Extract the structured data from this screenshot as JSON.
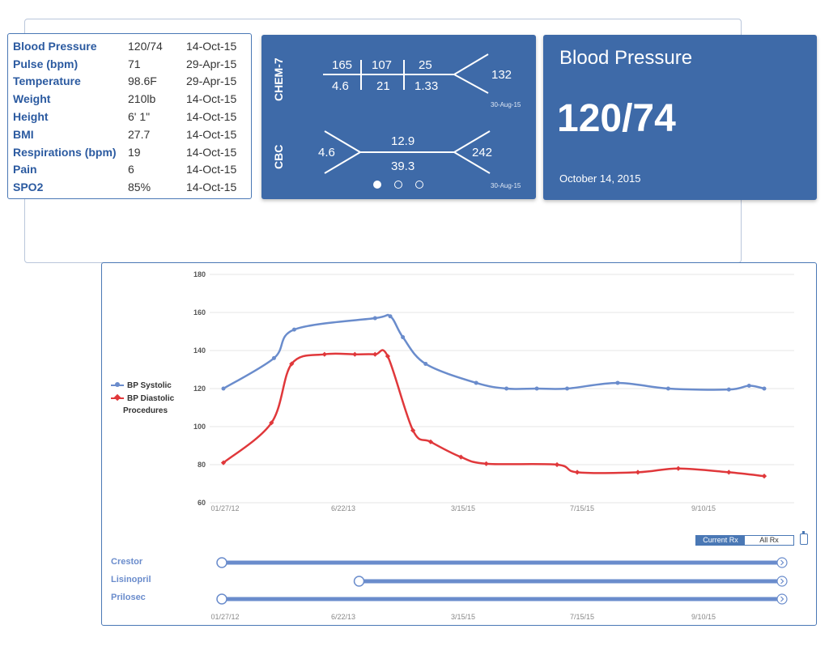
{
  "vitals": [
    {
      "label": "Blood Pressure",
      "value": "120/74",
      "date": "14-Oct-15"
    },
    {
      "label": "Pulse (bpm)",
      "value": "71",
      "date": "29-Apr-15"
    },
    {
      "label": "Temperature",
      "value": "98.6F",
      "date": "29-Apr-15"
    },
    {
      "label": "Weight",
      "value": "210lb",
      "date": "14-Oct-15"
    },
    {
      "label": "Height",
      "value": "6' 1\"",
      "date": "14-Oct-15"
    },
    {
      "label": "BMI",
      "value": "27.7",
      "date": "14-Oct-15"
    },
    {
      "label": "Respirations (bpm)",
      "value": "19",
      "date": "14-Oct-15"
    },
    {
      "label": "Pain",
      "value": "6",
      "date": "14-Oct-15"
    },
    {
      "label": "SPO2",
      "value": "85%",
      "date": "14-Oct-15"
    }
  ],
  "labs": {
    "chem7": {
      "label": "CHEM-7",
      "top": [
        "165",
        "107",
        "25"
      ],
      "bottom": [
        "4.6",
        "21",
        "1.33"
      ],
      "right": "132",
      "date": "30-Aug-15"
    },
    "cbc": {
      "label": "CBC",
      "left": "4.6",
      "top": "12.9",
      "bottom": "39.3",
      "right": "242",
      "date": "30-Aug-15"
    },
    "pager": {
      "count": 3,
      "active": 0
    }
  },
  "bp_card": {
    "title": "Blood Pressure",
    "value": "120/74",
    "date": "October 14, 2015"
  },
  "chart_data": {
    "type": "line",
    "ylim": [
      60,
      180
    ],
    "yticks": [
      60,
      80,
      100,
      120,
      140,
      160,
      180
    ],
    "x_ticks": [
      "01/27/12",
      "6/22/13",
      "3/15/15",
      "7/15/15",
      "9/10/15"
    ],
    "series": [
      {
        "name": "BP Systolic",
        "color": "#6a8ccc",
        "points": [
          [
            0.0,
            120
          ],
          [
            0.1,
            136
          ],
          [
            0.14,
            151
          ],
          [
            0.3,
            157
          ],
          [
            0.33,
            158
          ],
          [
            0.355,
            147
          ],
          [
            0.4,
            133
          ],
          [
            0.5,
            123
          ],
          [
            0.56,
            120
          ],
          [
            0.62,
            120
          ],
          [
            0.68,
            120
          ],
          [
            0.78,
            123
          ],
          [
            0.88,
            120
          ],
          [
            1.0,
            119.5
          ],
          [
            1.04,
            121.5
          ],
          [
            1.07,
            120
          ]
        ]
      },
      {
        "name": "BP Diastolic",
        "color": "#e0383b",
        "points": [
          [
            0.0,
            81
          ],
          [
            0.095,
            102
          ],
          [
            0.135,
            133
          ],
          [
            0.2,
            138
          ],
          [
            0.26,
            138
          ],
          [
            0.3,
            138
          ],
          [
            0.325,
            137
          ],
          [
            0.375,
            98
          ],
          [
            0.41,
            92
          ],
          [
            0.47,
            84
          ],
          [
            0.52,
            80.5
          ],
          [
            0.66,
            80
          ],
          [
            0.7,
            76
          ],
          [
            0.82,
            76
          ],
          [
            0.9,
            78
          ],
          [
            1.0,
            76
          ],
          [
            1.07,
            74
          ]
        ]
      }
    ],
    "legend_extra": "Procedures"
  },
  "rx": {
    "toggle": [
      "Current Rx",
      "All Rx"
    ],
    "active": 0,
    "medications": [
      {
        "name": "Crestor",
        "start": 0.0,
        "end": 1.0
      },
      {
        "name": "Lisinopril",
        "start": 0.245,
        "end": 1.0
      },
      {
        "name": "Prilosec",
        "start": 0.0,
        "end": 1.0
      }
    ],
    "colors": {
      "bar": "#6a8ccc",
      "axis_text": "#888888"
    }
  }
}
